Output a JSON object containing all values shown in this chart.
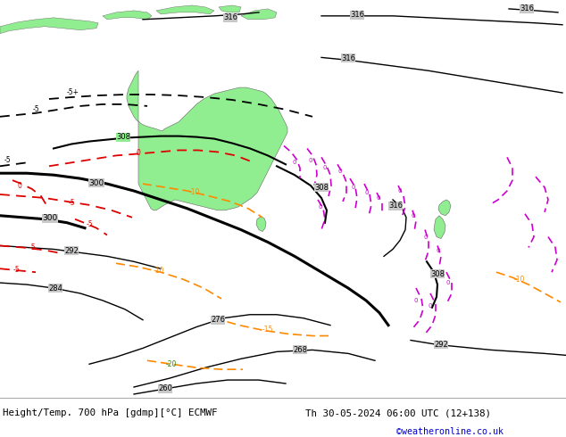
{
  "title_left": "Height/Temp. 700 hPa [gdmp][°C] ECMWF",
  "title_right": "Th 30-05-2024 06:00 UTC (12+138)",
  "credit": "©weatheronline.co.uk",
  "bg_color": "#c8c8c8",
  "land_color": "#90ee90",
  "text_color": "#000000",
  "credit_color": "#0000cc",
  "figsize": [
    6.34,
    4.9
  ],
  "dpi": 100,
  "map_bg": "#c8c8c8"
}
